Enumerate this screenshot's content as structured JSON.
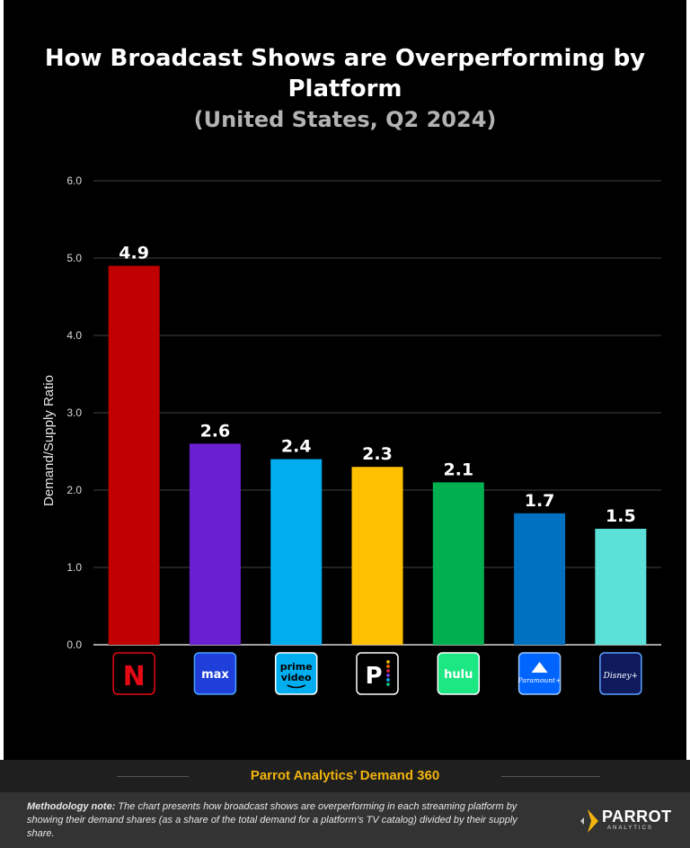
{
  "title": "How Broadcast Shows are Overperforming by Platform",
  "subtitle": "(United States, Q2 2024)",
  "chart_data": {
    "type": "bar",
    "title": "How Broadcast Shows are Overperforming by Platform",
    "subtitle": "(United States, Q2 2024)",
    "xlabel": "",
    "ylabel": "Demand/Supply Ratio",
    "ylim": [
      0,
      6
    ],
    "yticks": [
      "0.0",
      "1.0",
      "2.0",
      "3.0",
      "4.0",
      "5.0",
      "6.0"
    ],
    "grid": true,
    "categories": [
      "Netflix",
      "Max",
      "Prime Video",
      "Peacock",
      "Hulu",
      "Paramount+",
      "Disney+"
    ],
    "values": [
      4.9,
      2.6,
      2.4,
      2.3,
      2.1,
      1.7,
      1.5
    ],
    "labels": [
      "4.9",
      "2.6",
      "2.4",
      "2.3",
      "2.1",
      "1.7",
      "1.5"
    ],
    "colors": [
      "#c00000",
      "#6a1fd0",
      "#00aeef",
      "#ffc000",
      "#00b050",
      "#0070c0",
      "#5ce1d9"
    ],
    "logo_text": [
      "N",
      "max",
      "prime video",
      "P",
      "hulu",
      "Paramount+",
      "Disney+"
    ]
  },
  "footer": {
    "source": "Parrot Analytics’ Demand 360",
    "method_label": "Methodology note:",
    "method_text": " The chart presents how broadcast shows are overperforming in each streaming platform by showing their demand shares (as a share of the total demand for a platform’s TV catalog) divided by their supply share.",
    "logo_word": "PARROT",
    "logo_sub": "ANALYTICS"
  },
  "colors": {
    "background": "#000000",
    "accent": "#f2b40c",
    "grid": "#444444"
  }
}
